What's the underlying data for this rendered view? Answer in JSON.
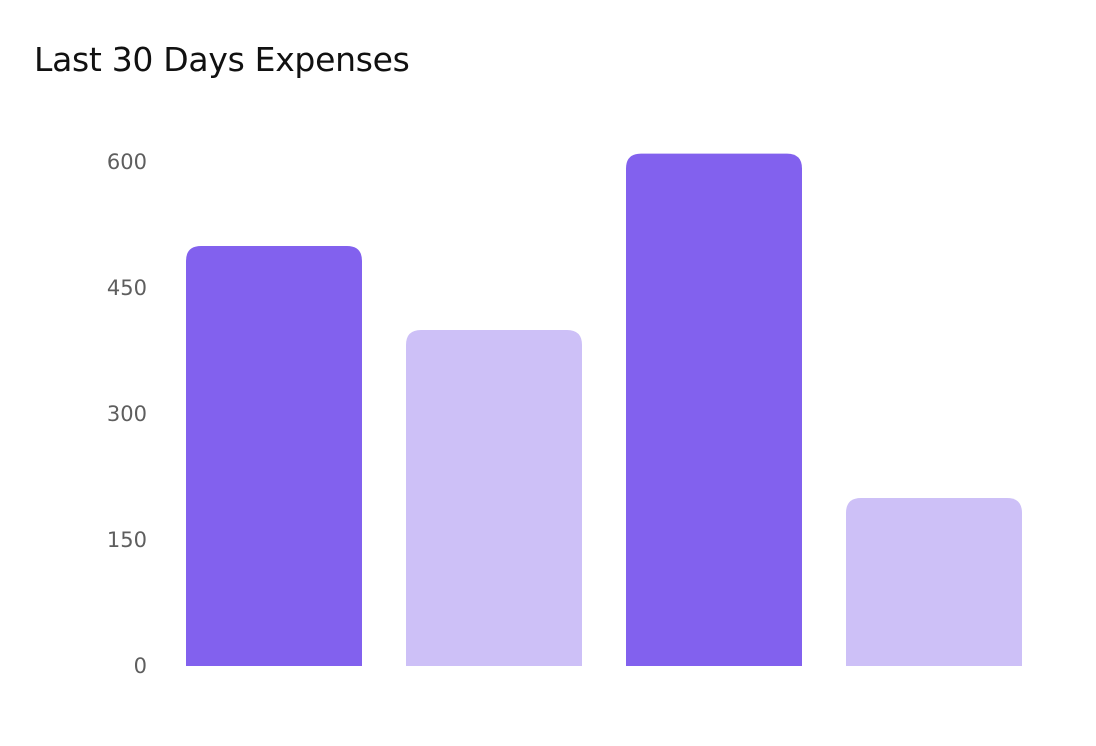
{
  "chart_data": {
    "type": "bar",
    "title": "Last 30 Days Expenses",
    "xlabel": "",
    "ylabel": "",
    "categories": [
      "",
      "",
      "",
      ""
    ],
    "values": [
      500,
      400,
      610,
      200
    ],
    "ylim": [
      0,
      600
    ],
    "yticks": [
      "0",
      "150",
      "300",
      "450",
      "600"
    ],
    "grid": false,
    "legend": "none",
    "colors": [
      "#8261ee",
      "#cdc0f7",
      "#8261ee",
      "#cdc0f7"
    ]
  }
}
